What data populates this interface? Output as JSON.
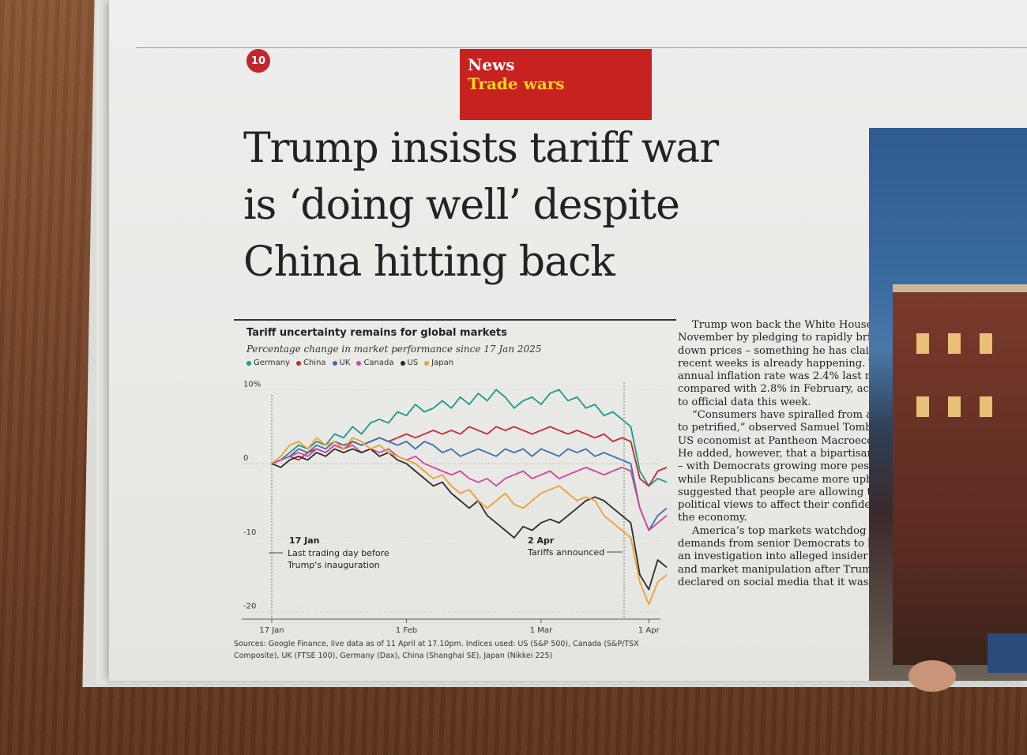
{
  "page": {
    "number": "10"
  },
  "kicker": {
    "section": "News",
    "topic": "Trade wars"
  },
  "headline": [
    "Trump insists tariff war",
    "is ‘doing well’ despite",
    "China hitting back"
  ],
  "chart": {
    "title": "Tariff uncertainty remains for global markets",
    "subtitle": "Percentage change in market performance since 17 Jan 2025",
    "legend": [
      "Germany",
      "China",
      "UK",
      "Canada",
      "US",
      "Japan"
    ],
    "colors": {
      "Germany": "#1a9a8a",
      "China": "#c8282c",
      "UK": "#3b6db3",
      "Canada": "#d4459a",
      "US": "#2b2b2b",
      "Japan": "#f0a030"
    },
    "y_tick_labels": [
      "10%",
      "0",
      "-10",
      "-20"
    ],
    "x_tick_labels": [
      "17 Jan",
      "1 Feb",
      "1 Mar",
      "1 Apr"
    ],
    "annotation_jan": {
      "date": "17 Jan",
      "line1": "Last trading day before",
      "line2": "Trump's inauguration"
    },
    "annotation_apr": {
      "date": "2 Apr",
      "text": "Tariffs announced"
    },
    "sources_line1": "Sources: Google Finance, live data as of 11 April at 17.10pm. Indices used: US (S&P 500), Canada (S&P/TSX",
    "sources_line2": "Composite), UK (FTSE 100), Germany (Dax), China (Shanghai SE), Japan (Nikkei 225)"
  },
  "chart_data": {
    "type": "line",
    "title": "Tariff uncertainty remains for global markets",
    "subtitle": "Percentage change in market performance since 17 Jan 2025",
    "xlabel": "",
    "ylabel": "",
    "ylim": [
      -21,
      11
    ],
    "x_ticks": [
      "17 Jan",
      "1 Feb",
      "1 Mar",
      "1 Apr"
    ],
    "y_ticks": [
      10,
      0,
      -10,
      -20
    ],
    "x": [
      0,
      2,
      4,
      6,
      8,
      10,
      12,
      14,
      16,
      18,
      20,
      22,
      24,
      26,
      28,
      30,
      32,
      34,
      36,
      38,
      40,
      42,
      44,
      46,
      48,
      50,
      52,
      54,
      56,
      58,
      60,
      62,
      64,
      66,
      68,
      70,
      72,
      74,
      76,
      78,
      80,
      82,
      84,
      86,
      88
    ],
    "series": [
      {
        "name": "Germany",
        "values": [
          0,
          0.5,
          1.5,
          2.5,
          2,
          3,
          2.5,
          4,
          3.5,
          5,
          4,
          5.5,
          6,
          5.5,
          7,
          6.5,
          8,
          7,
          7.5,
          8.5,
          7.5,
          9,
          8,
          9.5,
          8.5,
          10,
          9,
          7.5,
          8.5,
          9,
          8,
          9.5,
          10,
          8.5,
          9,
          7.5,
          8,
          6.5,
          7,
          6,
          5,
          -1,
          -3,
          -2,
          -2.5
        ]
      },
      {
        "name": "China",
        "values": [
          0,
          0.5,
          1,
          0.5,
          1.5,
          2,
          1.5,
          2.5,
          2,
          3,
          2.5,
          3,
          3.5,
          3,
          3.5,
          4,
          3.5,
          4,
          4.5,
          4,
          4.5,
          4,
          5,
          4.5,
          4,
          5,
          4.5,
          5,
          4.5,
          4,
          4.5,
          5,
          4.5,
          4,
          4.5,
          4,
          3.5,
          4,
          3,
          3.5,
          3,
          -2,
          -3,
          -1,
          -0.5
        ]
      },
      {
        "name": "UK",
        "values": [
          0,
          0.5,
          1,
          2,
          1.5,
          2.5,
          2,
          3,
          2.5,
          3,
          2.5,
          3,
          3.5,
          3,
          2.5,
          3,
          2,
          3,
          2.5,
          1.5,
          2,
          1,
          1.5,
          2,
          1.5,
          1,
          2,
          1.5,
          2,
          1,
          2,
          1.5,
          1,
          2,
          1.5,
          2,
          1,
          1.5,
          1,
          0.5,
          0,
          -6,
          -9,
          -7,
          -6
        ]
      },
      {
        "name": "Canada",
        "values": [
          0,
          0.5,
          1,
          1.5,
          1,
          2,
          1.5,
          2.5,
          2,
          2.5,
          1.5,
          2,
          1.5,
          2,
          1,
          0.5,
          1,
          0,
          -0.5,
          -1,
          -1.5,
          -1,
          -2,
          -2.5,
          -2,
          -3,
          -2,
          -1.5,
          -1,
          -2,
          -1.5,
          -1,
          -2,
          -1.5,
          -1,
          -0.5,
          -1,
          -1.5,
          -1,
          -0.5,
          -1,
          -6,
          -9,
          -8,
          -7
        ]
      },
      {
        "name": "US",
        "values": [
          0,
          -0.5,
          0.5,
          1,
          0.5,
          1.5,
          1,
          2,
          1.5,
          2,
          1.5,
          2,
          1,
          1.5,
          0.5,
          0,
          -1,
          -2,
          -3,
          -2.5,
          -4,
          -5,
          -6,
          -5,
          -7,
          -8,
          -9,
          -10,
          -8.5,
          -9,
          -8,
          -7.5,
          -8,
          -7,
          -6,
          -5,
          -4.5,
          -5,
          -6,
          -7,
          -8,
          -15,
          -17,
          -13,
          -14
        ]
      },
      {
        "name": "Japan",
        "values": [
          0,
          1,
          2.5,
          3,
          2,
          3.5,
          2.5,
          3,
          2,
          3.5,
          3,
          2,
          2.5,
          1.5,
          1,
          0.5,
          0,
          -1,
          -2,
          -1.5,
          -3,
          -4,
          -3.5,
          -5,
          -6,
          -5,
          -4,
          -5.5,
          -6,
          -5,
          -4,
          -3.5,
          -3,
          -4,
          -5,
          -4.5,
          -5,
          -7,
          -8,
          -9,
          -10,
          -16,
          -19,
          -16,
          -15
        ]
      }
    ]
  },
  "body": [
    "Trump won back the White House last November by pledging to rapidly bring down prices – something he has claimed in recent weeks is already happening. The US annual inflation rate was 2.4% last month, compared with 2.8% in February, according to official data this week.",
    "“Consumers have spiralled from anxious to petrified,” observed Samuel Tombs, chief US economist at Pantheon Macroeconomics. He added, however, that a bipartisan divide – with Democrats growing more pessimistic, while Republicans became more upbeat – suggested that people are allowing their political views to affect their confidence in the economy.",
    "America’s top markets watchdog is facing demands from senior Democrats to launch an investigation into alleged insider trading and market manipulation after Trump declared on social media that it was"
  ]
}
